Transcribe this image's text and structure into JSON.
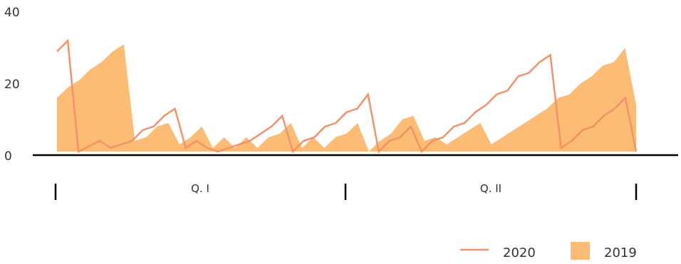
{
  "chart_data": {
    "type": "area",
    "xlabel": "",
    "ylabel": "",
    "ylim": [
      0,
      40
    ],
    "yticks": [
      "0",
      "20",
      "40"
    ],
    "quarters": [
      "Q. I",
      "Q. II"
    ],
    "grid": false,
    "legend_position": "bottom-right",
    "series": [
      {
        "name": "2020",
        "kind": "line",
        "color": "#f4916a",
        "values": [
          29,
          32,
          1,
          2.5,
          4,
          2,
          3,
          4,
          7,
          8,
          11,
          13,
          2,
          4,
          2,
          1,
          2,
          3,
          4,
          6,
          8,
          11,
          1,
          4,
          5,
          8,
          9,
          12,
          13,
          17,
          1,
          4,
          5,
          8,
          1,
          4,
          5,
          8,
          9,
          12,
          14,
          17,
          18,
          22,
          23,
          26,
          28,
          2,
          4,
          7,
          8,
          11,
          13,
          16,
          1
        ]
      },
      {
        "name": "2019",
        "kind": "area",
        "color": "#fcbc74",
        "values": [
          16,
          19,
          21,
          24,
          26,
          29,
          31,
          4,
          5,
          8,
          9,
          3,
          5,
          8,
          2,
          5,
          2,
          5,
          2,
          5,
          6,
          9,
          2,
          5,
          2,
          5,
          6,
          9,
          1,
          4,
          6,
          10,
          11,
          4,
          5,
          3,
          5,
          7,
          9,
          3,
          5,
          7,
          9,
          11,
          13,
          16,
          17,
          20,
          22,
          25,
          26,
          30,
          14
        ]
      }
    ]
  }
}
